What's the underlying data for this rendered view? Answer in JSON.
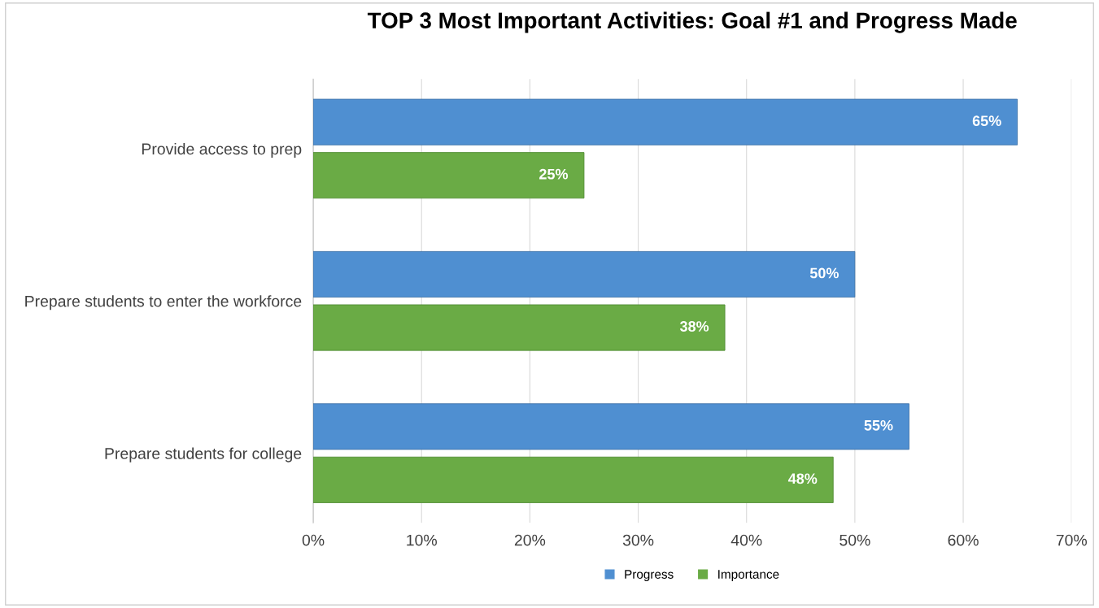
{
  "chart_data": {
    "type": "bar",
    "orientation": "horizontal",
    "title": "TOP 3 Most Important Activities: Goal #1 and Progress Made",
    "categories": [
      "Provide access to prep",
      "Prepare students to enter the workforce",
      "Prepare students for college"
    ],
    "series": [
      {
        "name": "Progress",
        "color": "#4f8fd1",
        "values": [
          65,
          50,
          55
        ],
        "value_labels": [
          "65%",
          "50%",
          "55%"
        ]
      },
      {
        "name": "Importance",
        "color": "#6aab45",
        "values": [
          25,
          38,
          48
        ],
        "value_labels": [
          "25%",
          "38%",
          "48%"
        ]
      }
    ],
    "xlim": [
      0,
      70
    ],
    "xticks": [
      {
        "value": 0,
        "label": "0%"
      },
      {
        "value": 10,
        "label": "10%"
      },
      {
        "value": 20,
        "label": "20%"
      },
      {
        "value": 30,
        "label": "30%"
      },
      {
        "value": 40,
        "label": "40%"
      },
      {
        "value": 50,
        "label": "50%"
      },
      {
        "value": 60,
        "label": "60%"
      },
      {
        "value": 70,
        "label": "70%"
      }
    ],
    "grid": "x",
    "legend": "bottom"
  }
}
